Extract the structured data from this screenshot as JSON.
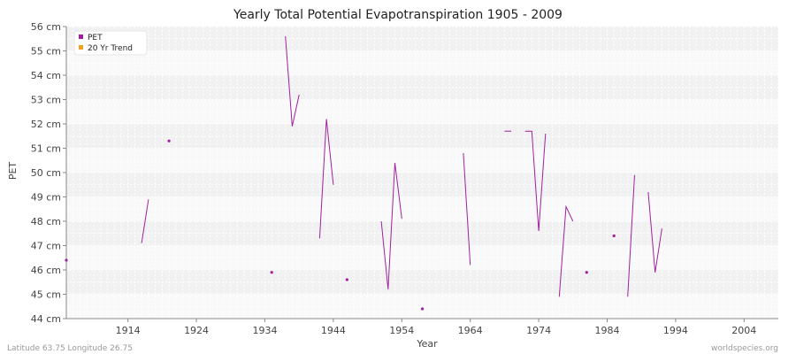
{
  "chart_data": {
    "type": "line",
    "title": "Yearly Total Potential Evapotranspiration 1905 - 2009",
    "xlabel": "Year",
    "ylabel": "PET",
    "xlim": [
      1905,
      2009
    ],
    "ylim": [
      44,
      56
    ],
    "x_ticks": [
      1914,
      1924,
      1934,
      1944,
      1954,
      1964,
      1974,
      1984,
      1994,
      2004
    ],
    "y_ticks": [
      {
        "value": 44,
        "label": "44 cm"
      },
      {
        "value": 45,
        "label": "45 cm"
      },
      {
        "value": 46,
        "label": "46 cm"
      },
      {
        "value": 47,
        "label": "47 cm"
      },
      {
        "value": 48,
        "label": "48 cm"
      },
      {
        "value": 49,
        "label": "49 cm"
      },
      {
        "value": 50,
        "label": "50 cm"
      },
      {
        "value": 51,
        "label": "51 cm"
      },
      {
        "value": 52,
        "label": "52 cm"
      },
      {
        "value": 53,
        "label": "53 cm"
      },
      {
        "value": 54,
        "label": "54 cm"
      },
      {
        "value": 55,
        "label": "55 cm"
      },
      {
        "value": 56,
        "label": "56 cm"
      }
    ],
    "grid": true,
    "legend": {
      "position": "top-left"
    },
    "series": [
      {
        "name": "PET",
        "color": "#a020a0",
        "segments": [
          [
            {
              "x": 1905,
              "y": 46.4
            }
          ],
          [
            {
              "x": 1916,
              "y": 47.1
            },
            {
              "x": 1917,
              "y": 48.9
            }
          ],
          [
            {
              "x": 1920,
              "y": 51.3
            }
          ],
          [
            {
              "x": 1935,
              "y": 45.9
            }
          ],
          [
            {
              "x": 1937,
              "y": 55.6
            },
            {
              "x": 1938,
              "y": 51.9
            },
            {
              "x": 1939,
              "y": 53.2
            }
          ],
          [
            {
              "x": 1942,
              "y": 47.3
            },
            {
              "x": 1943,
              "y": 52.2
            },
            {
              "x": 1944,
              "y": 49.5
            }
          ],
          [
            {
              "x": 1946,
              "y": 45.6
            }
          ],
          [
            {
              "x": 1951,
              "y": 48.0
            },
            {
              "x": 1952,
              "y": 45.2
            },
            {
              "x": 1953,
              "y": 50.4
            },
            {
              "x": 1954,
              "y": 48.1
            }
          ],
          [
            {
              "x": 1957,
              "y": 44.4
            }
          ],
          [
            {
              "x": 1963,
              "y": 50.8
            },
            {
              "x": 1964,
              "y": 46.2
            }
          ],
          [
            {
              "x": 1969,
              "y": 51.7
            },
            {
              "x": 1970,
              "y": 51.7
            }
          ],
          [
            {
              "x": 1972,
              "y": 51.7
            },
            {
              "x": 1973,
              "y": 51.7
            },
            {
              "x": 1974,
              "y": 47.6
            },
            {
              "x": 1975,
              "y": 51.6
            }
          ],
          [
            {
              "x": 1977,
              "y": 44.9
            },
            {
              "x": 1978,
              "y": 48.6
            },
            {
              "x": 1979,
              "y": 48.0
            }
          ],
          [
            {
              "x": 1981,
              "y": 45.9
            }
          ],
          [
            {
              "x": 1985,
              "y": 47.4
            }
          ],
          [
            {
              "x": 1987,
              "y": 44.9
            },
            {
              "x": 1988,
              "y": 49.9
            }
          ],
          [
            {
              "x": 1990,
              "y": 49.2
            },
            {
              "x": 1991,
              "y": 45.9
            },
            {
              "x": 1992,
              "y": 47.7
            }
          ]
        ]
      },
      {
        "name": "20 Yr Trend",
        "color": "#f0a020",
        "segments": []
      }
    ]
  },
  "footer": {
    "left": "Latitude 63.75 Longitude 26.75",
    "right": "worldspecies.org"
  }
}
